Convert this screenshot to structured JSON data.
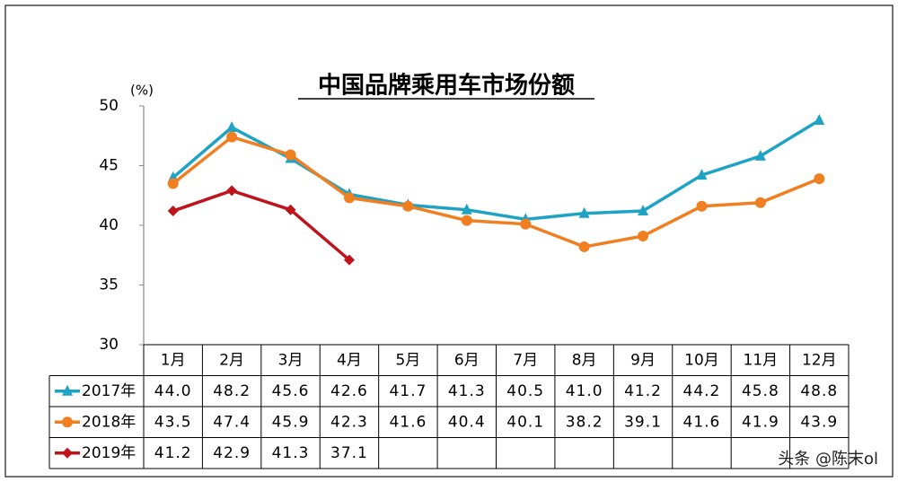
{
  "chart_data": {
    "type": "line",
    "title": "中国品牌乘用车市场份额",
    "y_unit": "(%)",
    "categories": [
      "1月",
      "2月",
      "3月",
      "4月",
      "5月",
      "6月",
      "7月",
      "8月",
      "9月",
      "10月",
      "11月",
      "12月"
    ],
    "series": [
      {
        "name": "2017年",
        "color": "#1fa3c4",
        "marker": "triangle",
        "values": [
          44.0,
          48.2,
          45.6,
          42.6,
          41.7,
          41.3,
          40.5,
          41.0,
          41.2,
          44.2,
          45.8,
          48.8
        ],
        "value_labels": [
          "44.0",
          "48.2",
          "45.6",
          "42.6",
          "41.7",
          "41.3",
          "40.5",
          "41.0",
          "41.2",
          "44.2",
          "45.8",
          "48.8"
        ]
      },
      {
        "name": "2018年",
        "color": "#f07f22",
        "marker": "circle",
        "values": [
          43.5,
          47.4,
          45.9,
          42.3,
          41.6,
          40.4,
          40.1,
          38.2,
          39.1,
          41.6,
          41.9,
          43.9
        ],
        "value_labels": [
          "43.5",
          "47.4",
          "45.9",
          "42.3",
          "41.6",
          "40.4",
          "40.1",
          "38.2",
          "39.1",
          "41.6",
          "41.9",
          "43.9"
        ]
      },
      {
        "name": "2019年",
        "color": "#c0141d",
        "marker": "diamond",
        "values": [
          41.2,
          42.9,
          41.3,
          37.1,
          null,
          null,
          null,
          null,
          null,
          null,
          null,
          null
        ],
        "value_labels": [
          "41.2",
          "42.9",
          "41.3",
          "37.1",
          null,
          null,
          null,
          null,
          null,
          null,
          null,
          null
        ]
      }
    ],
    "ylim": [
      30,
      50
    ],
    "yticks": [
      50,
      45,
      40,
      35,
      30
    ],
    "grid": false,
    "watermark": "头条 @陈末ol"
  }
}
